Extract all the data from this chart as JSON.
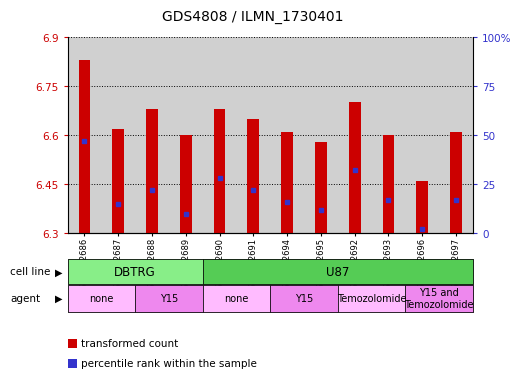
{
  "title": "GDS4808 / ILMN_1730401",
  "samples": [
    "GSM1062686",
    "GSM1062687",
    "GSM1062688",
    "GSM1062689",
    "GSM1062690",
    "GSM1062691",
    "GSM1062694",
    "GSM1062695",
    "GSM1062692",
    "GSM1062693",
    "GSM1062696",
    "GSM1062697"
  ],
  "bar_values": [
    6.83,
    6.62,
    6.68,
    6.6,
    6.68,
    6.65,
    6.61,
    6.58,
    6.7,
    6.6,
    6.46,
    6.61
  ],
  "percentile_values": [
    47,
    15,
    22,
    10,
    28,
    22,
    16,
    12,
    32,
    17,
    2,
    17
  ],
  "ymin": 6.3,
  "ymax": 6.9,
  "yticks_left": [
    6.3,
    6.45,
    6.6,
    6.75,
    6.9
  ],
  "yticks_left_labels": [
    "6.3",
    "6.45",
    "6.6",
    "6.75",
    "6.9"
  ],
  "yticks_right_vals": [
    0,
    25,
    50,
    75,
    100
  ],
  "yticks_right_labels": [
    "0",
    "25",
    "50",
    "75",
    "100%"
  ],
  "bar_color": "#cc0000",
  "dot_color": "#3333cc",
  "bar_base": 6.3,
  "bar_width": 0.35,
  "col_bg_color": "#d0d0d0",
  "plot_bg_color": "#ffffff",
  "cell_line_groups": [
    {
      "label": "DBTRG",
      "start": 0,
      "end": 3,
      "color": "#88ee88"
    },
    {
      "label": "U87",
      "start": 4,
      "end": 11,
      "color": "#55cc55"
    }
  ],
  "agent_groups": [
    {
      "label": "none",
      "start": 0,
      "end": 1,
      "color": "#ffbbff"
    },
    {
      "label": "Y15",
      "start": 2,
      "end": 3,
      "color": "#ee88ee"
    },
    {
      "label": "none",
      "start": 4,
      "end": 5,
      "color": "#ffbbff"
    },
    {
      "label": "Y15",
      "start": 6,
      "end": 7,
      "color": "#ee88ee"
    },
    {
      "label": "Temozolomide",
      "start": 8,
      "end": 9,
      "color": "#ffbbff"
    },
    {
      "label": "Y15 and\nTemozolomide",
      "start": 10,
      "end": 11,
      "color": "#ee88ee"
    }
  ],
  "grid_color": "black",
  "bg_color": "#ffffff",
  "tick_color_left": "#cc0000",
  "tick_color_right": "#3333cc"
}
